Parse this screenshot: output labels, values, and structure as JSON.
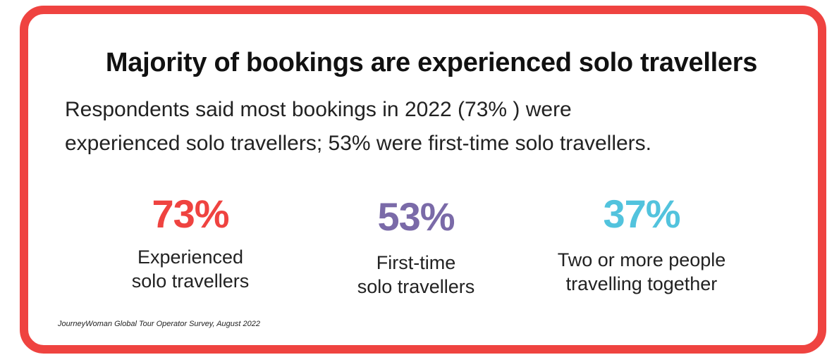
{
  "title": "Majority of bookings are experienced solo travellers",
  "subtitle": {
    "line1": "Respondents said most bookings in 2022 (73% ) were",
    "line2": "experienced solo travellers; 53% were first-time solo travellers."
  },
  "stats": [
    {
      "value": "73%",
      "label_line1": "Experienced",
      "label_line2": "solo travellers",
      "color": "#ef4340"
    },
    {
      "value": "53%",
      "label_line1": "First-time",
      "label_line2": "solo travellers",
      "color": "#7a6aa8"
    },
    {
      "value": "37%",
      "label_line1": "Two or more people",
      "label_line2": "travelling together",
      "color": "#52c3dd"
    }
  ],
  "source": "JourneyWoman Global Tour Operator Survey, August 2022",
  "colors": {
    "border": "#ef4340"
  }
}
